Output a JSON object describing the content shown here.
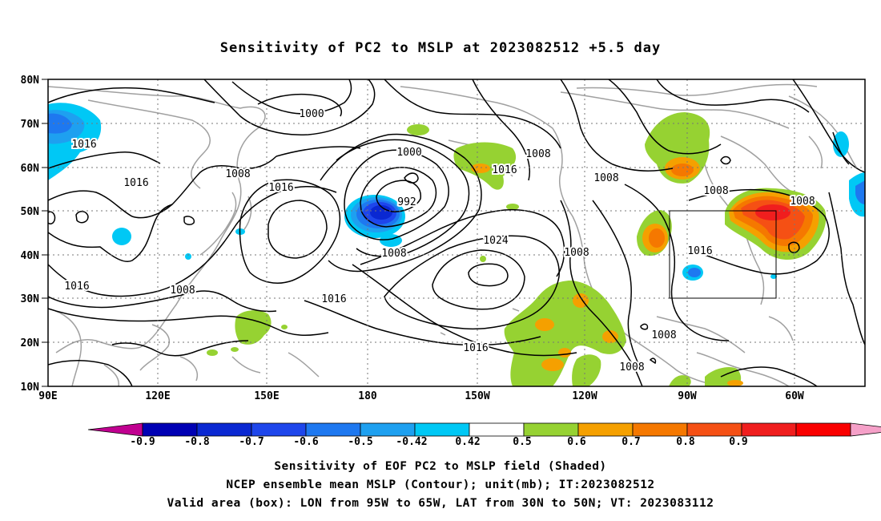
{
  "title": "Sensitivity of PC2 to MSLP at 2023082512 +5.5 day",
  "lat_labels": [
    "80N",
    "70N",
    "60N",
    "50N",
    "40N",
    "30N",
    "20N",
    "10N"
  ],
  "lon_labels": [
    "90E",
    "120E",
    "150E",
    "180",
    "150W",
    "120W",
    "90W",
    "60W"
  ],
  "contour_labels": [
    {
      "text": "1000"
    },
    {
      "text": "1016"
    },
    {
      "text": "1016"
    },
    {
      "text": "1008"
    },
    {
      "text": "1016"
    },
    {
      "text": "1000"
    },
    {
      "text": "992"
    },
    {
      "text": "1008"
    },
    {
      "text": "1016"
    },
    {
      "text": "1008"
    },
    {
      "text": "1016"
    },
    {
      "text": "1008"
    },
    {
      "text": "1024"
    },
    {
      "text": "1008"
    },
    {
      "text": "1016"
    },
    {
      "text": "1016"
    },
    {
      "text": "1008"
    },
    {
      "text": "1008"
    },
    {
      "text": "1008"
    },
    {
      "text": "1016"
    },
    {
      "text": "1008"
    }
  ],
  "colorbar": {
    "labels": [
      "-0.9",
      "-0.8",
      "-0.7",
      "-0.6",
      "-0.5",
      "-0.42",
      "0.42",
      "0.5",
      "0.6",
      "0.7",
      "0.8",
      "0.9"
    ],
    "colors": [
      "#c00090",
      "#0000b4",
      "#0a28d2",
      "#1e46eb",
      "#1e78f0",
      "#1ea0f0",
      "#00c8f5",
      "#ffffff",
      "#96d232",
      "#f5a000",
      "#f57800",
      "#f55014",
      "#f01e1e",
      "#fa0000",
      "#f5a0c8"
    ]
  },
  "captions": [
    "Sensitivity of EOF PC2 to MSLP field (Shaded)",
    "NCEP ensemble mean MSLP (Contour); unit(mb); IT:2023082512",
    "Valid area (box): LON from 95W to 65W, LAT from 30N to 50N; VT: 2023083112"
  ]
}
